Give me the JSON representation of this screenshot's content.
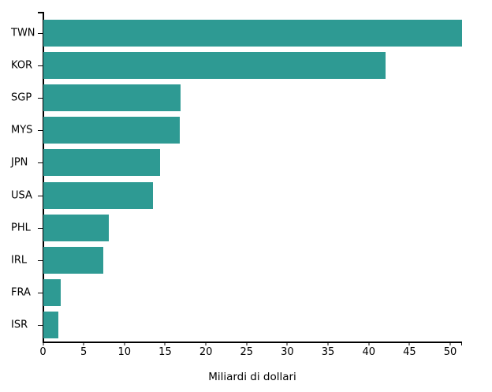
{
  "chart_data": {
    "type": "bar",
    "orientation": "horizontal",
    "title": "",
    "xlabel": "Miliardi di dollari",
    "ylabel": "",
    "categories": [
      "TWN",
      "KOR",
      "SGP",
      "MYS",
      "JPN",
      "USA",
      "PHL",
      "IRL",
      "FRA",
      "ISR"
    ],
    "values": [
      51.4,
      42.0,
      16.8,
      16.7,
      14.3,
      13.5,
      8.0,
      7.4,
      2.1,
      1.8
    ],
    "xlim": [
      0,
      51.4
    ],
    "xticks": [
      0,
      5,
      10,
      15,
      20,
      25,
      30,
      35,
      40,
      45,
      50
    ],
    "grid": false,
    "legend": false,
    "bar_color": "#2e9a93",
    "axis_color": "#000000",
    "background_color": "#ffffff"
  }
}
